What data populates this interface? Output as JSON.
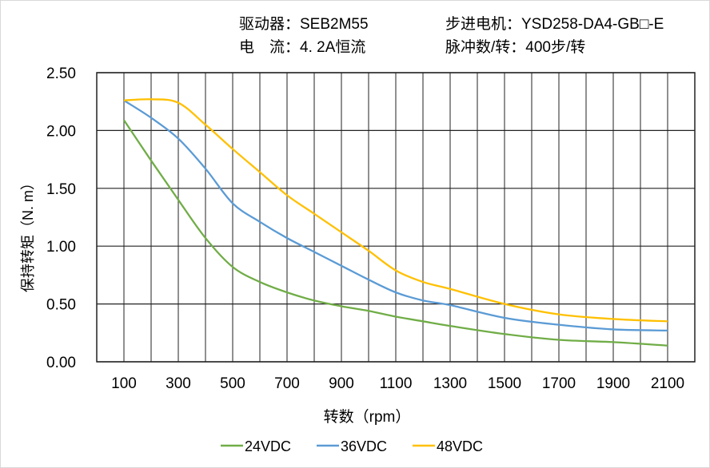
{
  "header": {
    "driver": "驱动器：SEB2M55",
    "current": "电　流：4. 2A恒流",
    "motor": "步进电机：YSD258-DA4-GB□-E",
    "pulses": "脉冲数/转：400步/转"
  },
  "chart_data": {
    "type": "line",
    "title": "",
    "xlabel": "转数（rpm）",
    "ylabel": "保持转矩（N. m）",
    "xlim": [
      0,
      2200
    ],
    "ylim": [
      0,
      2.5
    ],
    "grid": true,
    "legend_position": "bottom",
    "x_ticks": [
      "100",
      "300",
      "500",
      "700",
      "900",
      "1100",
      "1300",
      "1500",
      "1700",
      "1900",
      "2100"
    ],
    "y_ticks": [
      "0.00",
      "0.50",
      "1.00",
      "1.50",
      "2.00",
      "2.50"
    ],
    "x": [
      100,
      200,
      300,
      400,
      500,
      600,
      700,
      800,
      900,
      1000,
      1100,
      1200,
      1300,
      1500,
      1700,
      1900,
      2100
    ],
    "series": [
      {
        "name": "24VDC",
        "color": "#70ad47",
        "values": [
          2.09,
          1.74,
          1.4,
          1.07,
          0.82,
          0.69,
          0.6,
          0.53,
          0.48,
          0.44,
          0.39,
          0.35,
          0.31,
          0.24,
          0.19,
          0.17,
          0.14
        ]
      },
      {
        "name": "36VDC",
        "color": "#5b9bd5",
        "values": [
          2.26,
          2.11,
          1.93,
          1.67,
          1.37,
          1.21,
          1.07,
          0.95,
          0.83,
          0.71,
          0.6,
          0.53,
          0.49,
          0.38,
          0.32,
          0.28,
          0.27
        ]
      },
      {
        "name": "48VDC",
        "color": "#ffc000",
        "values": [
          2.26,
          2.27,
          2.24,
          2.05,
          1.84,
          1.64,
          1.44,
          1.28,
          1.12,
          0.96,
          0.79,
          0.69,
          0.63,
          0.5,
          0.41,
          0.37,
          0.35
        ]
      }
    ]
  }
}
